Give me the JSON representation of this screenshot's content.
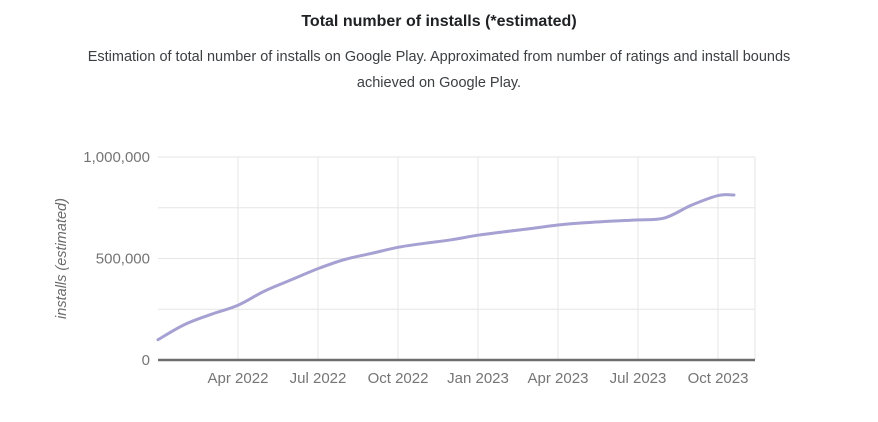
{
  "header": {
    "title": "Total number of installs (*estimated)",
    "subtitle_line1": "Estimation of total number of installs on Google Play. Approximated from number of ratings and install bounds",
    "subtitle_line2": "achieved on Google Play."
  },
  "chart_data": {
    "type": "line",
    "title": "Total number of installs (*estimated)",
    "subtitle": "Estimation of total number of installs on Google Play. Approximated from number of ratings and install bounds achieved on Google Play.",
    "ylabel": "installs (estimated)",
    "xlabel": "",
    "ylim": [
      0,
      1000000
    ],
    "grid": true,
    "legend_position": "none",
    "x_unit": "months since Jan 2022",
    "y_ticks": [
      {
        "value": 0,
        "label": "0"
      },
      {
        "value": 500000,
        "label": "500,000"
      },
      {
        "value": 1000000,
        "label": "1,000,000"
      }
    ],
    "y_gridlines": [
      250000,
      500000,
      750000,
      1000000
    ],
    "x_ticks": [
      {
        "month": 3,
        "label": "Apr 2022"
      },
      {
        "month": 6,
        "label": "Jul 2022"
      },
      {
        "month": 9,
        "label": "Oct 2022"
      },
      {
        "month": 12,
        "label": "Jan 2023"
      },
      {
        "month": 15,
        "label": "Apr 2023"
      },
      {
        "month": 18,
        "label": "Jul 2023"
      },
      {
        "month": 21,
        "label": "Oct 2023"
      }
    ],
    "series": [
      {
        "name": "installs (estimated)",
        "points": [
          [
            0,
            100000
          ],
          [
            1,
            175000
          ],
          [
            2,
            225000
          ],
          [
            3,
            270000
          ],
          [
            4,
            340000
          ],
          [
            5,
            395000
          ],
          [
            6,
            450000
          ],
          [
            7,
            495000
          ],
          [
            8,
            525000
          ],
          [
            9,
            555000
          ],
          [
            10,
            575000
          ],
          [
            11,
            592000
          ],
          [
            12,
            615000
          ],
          [
            13,
            632000
          ],
          [
            14,
            648000
          ],
          [
            15,
            665000
          ],
          [
            16,
            676000
          ],
          [
            17,
            684000
          ],
          [
            18,
            690000
          ],
          [
            19,
            700000
          ],
          [
            20,
            762000
          ],
          [
            21,
            810000
          ],
          [
            21.6,
            813000
          ]
        ]
      }
    ],
    "colors": {
      "line": "#a5a1d2",
      "gridline": "#e6e6e6",
      "axis": "#6d6d6d",
      "tick_label": "#757575",
      "axis_title": "#6b6b6b",
      "title": "#202124",
      "subtitle": "#3c4043",
      "background": "#ffffff"
    }
  }
}
